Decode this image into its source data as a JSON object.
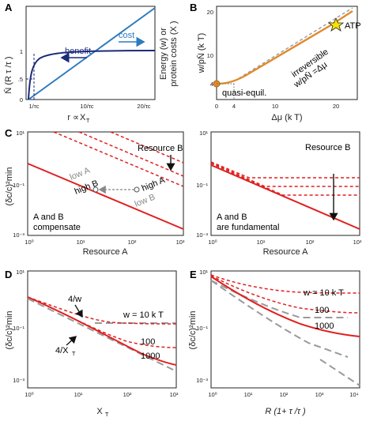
{
  "panels": {
    "A": {
      "letter": "A",
      "xlabel_left": "r ∝ ",
      "xlabel_right": "X",
      "xlabel_sub": "T",
      "ylabel_left": "N̄ (R τ /τ )",
      "ylabel_right_1": "Energy (w) or",
      "ylabel_right_2": "protein costs (X )",
      "xticks": [
        "1/τc",
        "10/τc",
        "20/τc"
      ],
      "yticks": [
        "0",
        ".5",
        "1"
      ],
      "benefit_label": "benefit",
      "cost_label": "cost"
    },
    "B": {
      "letter": "B",
      "xlabel": "Δμ (k T)",
      "ylabel": "w/pN̄   (k T)",
      "xticks": [
        "0",
        "4",
        "10",
        "20"
      ],
      "yticks": [
        "4",
        "10",
        "20"
      ],
      "quasi_label": "quasi-equil.",
      "atp_label": "ATP",
      "irreversible_1": "irreversible",
      "irreversible_2": "w/pN̄   =Δμ"
    },
    "C": {
      "letter": "C",
      "ylabel": "(δc/c)²min",
      "left": {
        "xlabel": "Resource A",
        "resource_b": "Resource B",
        "low_a": "low A",
        "high_a": "high A",
        "low_b": "low B",
        "high_b": "high B",
        "caption_1": "A and B",
        "caption_2": "compensate"
      },
      "right": {
        "xlabel": "Resource A",
        "resource_b": "Resource B",
        "caption_1": "A and B",
        "caption_2": "are fundamental"
      },
      "xticks": [
        "10⁰",
        "10¹",
        "10²",
        "10³"
      ],
      "yticks": [
        "10¹",
        "10⁻¹",
        "10⁻³"
      ]
    },
    "D": {
      "letter": "D",
      "xlabel": "X",
      "xlabel_sub": "T",
      "ylabel": "(δc/c)²min",
      "label_4w": "4/w",
      "label_4xt": "4/X",
      "w10": "w = 10 k T",
      "w100": "100",
      "w1000": "1000",
      "xticks": [
        "10⁰",
        "10¹",
        "10²",
        "10³"
      ],
      "yticks": [
        "10¹",
        "10⁻¹",
        "10⁻³"
      ]
    },
    "E": {
      "letter": "E",
      "xlabel": "R (1+ τ /τ )",
      "ylabel": "(δc/c)²min",
      "w10": "w = 10 k T",
      "w100": "100",
      "w1000": "1000",
      "xticks": [
        "10⁰",
        "10¹",
        "10²",
        "10³",
        "10⁴"
      ],
      "yticks": [
        "10¹",
        "10⁻¹",
        "10⁻³"
      ]
    }
  },
  "colors": {
    "navy": "#1c2a7a",
    "blue": "#2b7bbf",
    "orange": "#e08a2e",
    "red": "#e02020",
    "gray": "#9a9a9a"
  }
}
